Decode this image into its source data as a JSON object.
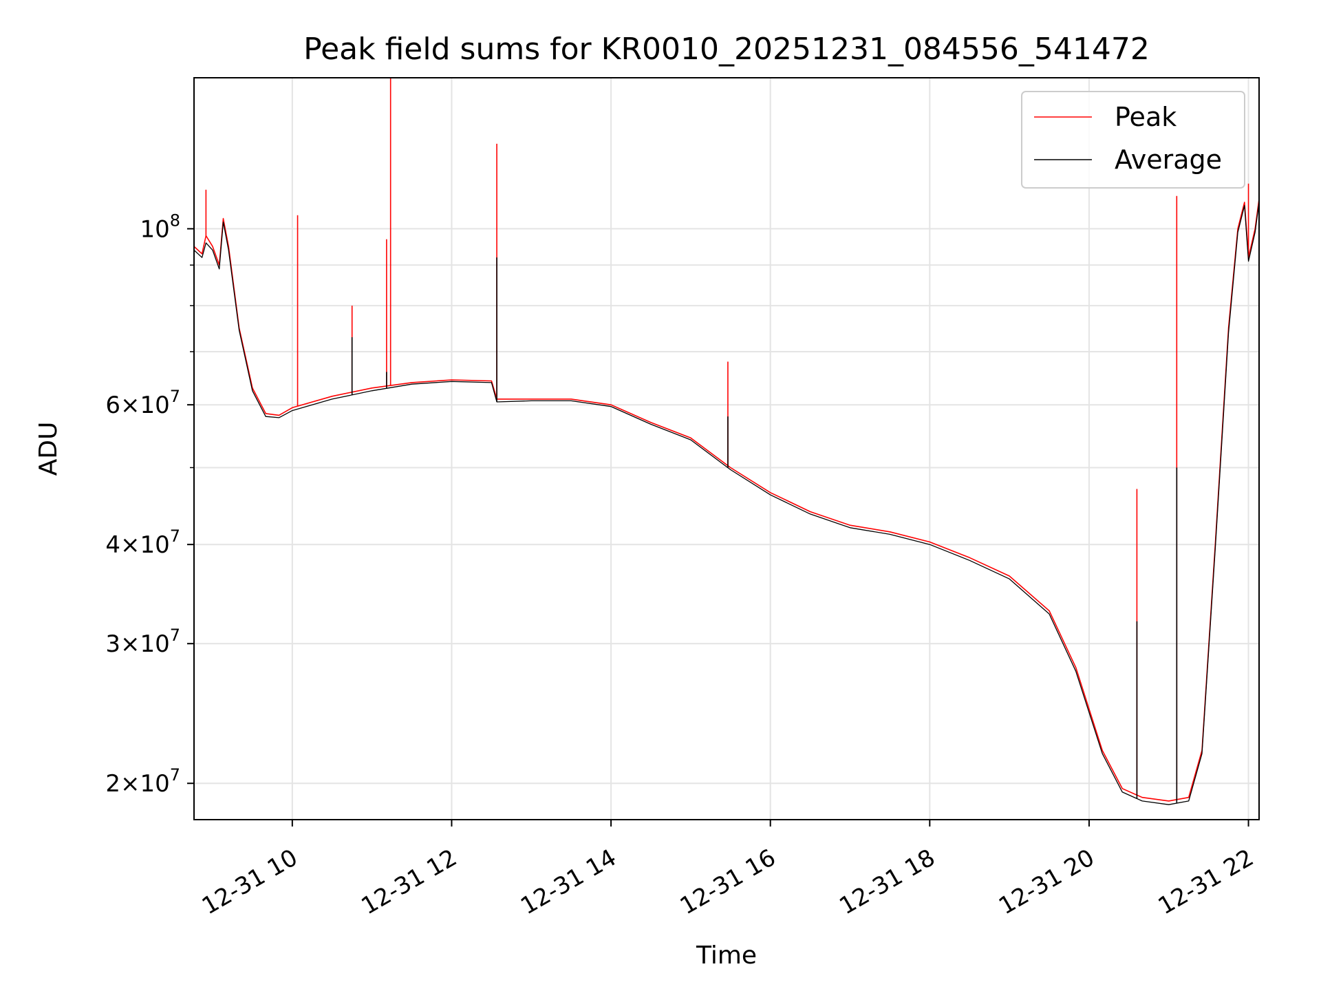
{
  "chart_data": {
    "type": "line",
    "title": "Peak field sums for KR0010_20251231_084556_541472",
    "xlabel": "Time",
    "ylabel": "ADU",
    "y_scale": "log",
    "xlim": [
      "12-31 08:46",
      "12-31 22:08"
    ],
    "ylim": [
      18000000,
      155000000
    ],
    "grid": true,
    "x_ticks": [
      "12-31 10",
      "12-31 12",
      "12-31 14",
      "12-31 16",
      "12-31 18",
      "12-31 20",
      "12-31 22"
    ],
    "y_ticks": [
      {
        "value": 20000000,
        "mantissa": "2",
        "base": "10",
        "exp": "7"
      },
      {
        "value": 30000000,
        "mantissa": "3",
        "base": "10",
        "exp": "7"
      },
      {
        "value": 40000000,
        "mantissa": "4",
        "base": "10",
        "exp": "7"
      },
      {
        "value": 60000000,
        "mantissa": "6",
        "base": "10",
        "exp": "7"
      },
      {
        "value": 100000000,
        "mantissa": "",
        "base": "10",
        "exp": "8"
      }
    ],
    "y_minor_ticks": [
      50000000,
      70000000,
      80000000,
      90000000
    ],
    "legend_position": "top-right",
    "series": [
      {
        "name": "Peak",
        "color": "#ff0000",
        "baseline": [
          [
            "12-31 08:46",
            95000000
          ],
          [
            "12-31 08:52",
            93000000
          ],
          [
            "12-31 08:55",
            98000000
          ],
          [
            "12-31 09:00",
            95000000
          ],
          [
            "12-31 09:05",
            90000000
          ],
          [
            "12-31 09:08",
            103000000
          ],
          [
            "12-31 09:12",
            95000000
          ],
          [
            "12-31 09:20",
            75000000
          ],
          [
            "12-31 09:30",
            63000000
          ],
          [
            "12-31 09:40",
            58500000
          ],
          [
            "12-31 09:50",
            58200000
          ],
          [
            "12-31 10:00",
            59500000
          ],
          [
            "12-31 10:30",
            61500000
          ],
          [
            "12-31 11:00",
            63000000
          ],
          [
            "12-31 11:30",
            64000000
          ],
          [
            "12-31 12:00",
            64500000
          ],
          [
            "12-31 12:30",
            64300000
          ],
          [
            "12-31 12:34",
            61000000
          ],
          [
            "12-31 13:00",
            61000000
          ],
          [
            "12-31 13:30",
            61000000
          ],
          [
            "12-31 14:00",
            60000000
          ],
          [
            "12-31 14:30",
            57000000
          ],
          [
            "12-31 15:00",
            54500000
          ],
          [
            "12-31 15:30",
            50000000
          ],
          [
            "12-31 16:00",
            46500000
          ],
          [
            "12-31 16:30",
            44000000
          ],
          [
            "12-31 17:00",
            42300000
          ],
          [
            "12-31 17:30",
            41500000
          ],
          [
            "12-31 18:00",
            40300000
          ],
          [
            "12-31 18:30",
            38500000
          ],
          [
            "12-31 19:00",
            36500000
          ],
          [
            "12-31 19:30",
            33000000
          ],
          [
            "12-31 19:50",
            28000000
          ],
          [
            "12-31 20:10",
            22000000
          ],
          [
            "12-31 20:25",
            19700000
          ],
          [
            "12-31 20:40",
            19200000
          ],
          [
            "12-31 21:00",
            19000000
          ],
          [
            "12-31 21:15",
            19200000
          ],
          [
            "12-31 21:25",
            22000000
          ],
          [
            "12-31 21:35",
            40000000
          ],
          [
            "12-31 21:45",
            75000000
          ],
          [
            "12-31 21:52",
            100000000
          ],
          [
            "12-31 21:57",
            108000000
          ],
          [
            "12-31 22:00",
            92000000
          ],
          [
            "12-31 22:05",
            100000000
          ],
          [
            "12-31 22:08",
            109000000
          ]
        ],
        "spikes": [
          [
            "12-31 08:55",
            112000000
          ],
          [
            "12-31 10:04",
            104000000
          ],
          [
            "12-31 10:45",
            80000000
          ],
          [
            "12-31 11:11",
            97000000
          ],
          [
            "12-31 11:14",
            155000000
          ],
          [
            "12-31 12:34",
            128000000
          ],
          [
            "12-31 15:28",
            68000000
          ],
          [
            "12-31 20:36",
            47000000
          ],
          [
            "12-31 21:06",
            110000000
          ],
          [
            "12-31 22:00",
            114000000
          ]
        ]
      },
      {
        "name": "Average",
        "color": "#000000",
        "baseline": [
          [
            "12-31 08:46",
            94000000
          ],
          [
            "12-31 08:52",
            92000000
          ],
          [
            "12-31 08:55",
            96000000
          ],
          [
            "12-31 09:00",
            94000000
          ],
          [
            "12-31 09:05",
            89000000
          ],
          [
            "12-31 09:08",
            102000000
          ],
          [
            "12-31 09:12",
            94000000
          ],
          [
            "12-31 09:20",
            74500000
          ],
          [
            "12-31 09:30",
            62500000
          ],
          [
            "12-31 09:40",
            58000000
          ],
          [
            "12-31 09:50",
            57800000
          ],
          [
            "12-31 10:00",
            59000000
          ],
          [
            "12-31 10:30",
            61000000
          ],
          [
            "12-31 11:00",
            62500000
          ],
          [
            "12-31 11:30",
            63700000
          ],
          [
            "12-31 12:00",
            64200000
          ],
          [
            "12-31 12:30",
            64000000
          ],
          [
            "12-31 12:34",
            60500000
          ],
          [
            "12-31 13:00",
            60700000
          ],
          [
            "12-31 13:30",
            60700000
          ],
          [
            "12-31 14:00",
            59700000
          ],
          [
            "12-31 14:30",
            56700000
          ],
          [
            "12-31 15:00",
            54200000
          ],
          [
            "12-31 15:30",
            49700000
          ],
          [
            "12-31 16:00",
            46200000
          ],
          [
            "12-31 16:30",
            43700000
          ],
          [
            "12-31 17:00",
            42000000
          ],
          [
            "12-31 17:30",
            41200000
          ],
          [
            "12-31 18:00",
            40000000
          ],
          [
            "12-31 18:30",
            38200000
          ],
          [
            "12-31 19:00",
            36200000
          ],
          [
            "12-31 19:30",
            32700000
          ],
          [
            "12-31 19:50",
            27700000
          ],
          [
            "12-31 20:10",
            21800000
          ],
          [
            "12-31 20:25",
            19500000
          ],
          [
            "12-31 20:40",
            19000000
          ],
          [
            "12-31 21:00",
            18800000
          ],
          [
            "12-31 21:15",
            19000000
          ],
          [
            "12-31 21:25",
            21800000
          ],
          [
            "12-31 21:35",
            39500000
          ],
          [
            "12-31 21:45",
            74000000
          ],
          [
            "12-31 21:52",
            99000000
          ],
          [
            "12-31 21:57",
            107000000
          ],
          [
            "12-31 22:00",
            91000000
          ],
          [
            "12-31 22:05",
            99000000
          ],
          [
            "12-31 22:08",
            108000000
          ]
        ],
        "spikes": [
          [
            "12-31 10:45",
            73000000
          ],
          [
            "12-31 11:11",
            66000000
          ],
          [
            "12-31 12:34",
            92000000
          ],
          [
            "12-31 15:28",
            58000000
          ],
          [
            "12-31 20:36",
            32000000
          ],
          [
            "12-31 21:06",
            50000000
          ]
        ]
      }
    ]
  }
}
